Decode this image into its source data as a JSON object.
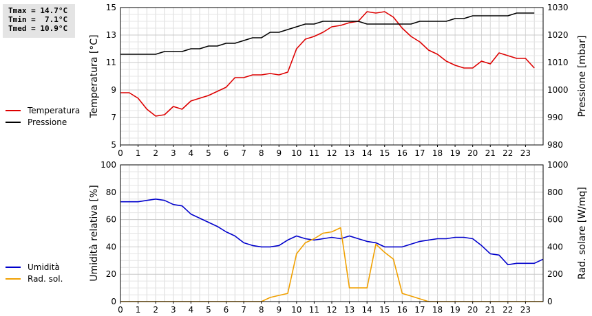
{
  "summary": {
    "tmax": "Tmax = 14.7°C",
    "tmin": "Tmin =  7.1°C",
    "tmed": "Tmed = 10.9°C"
  },
  "chart_data": [
    {
      "type": "line",
      "title": "",
      "xlabel": "",
      "x_ticks": [
        0,
        1,
        2,
        3,
        4,
        5,
        6,
        7,
        8,
        9,
        10,
        11,
        12,
        13,
        14,
        15,
        16,
        17,
        18,
        19,
        20,
        21,
        22,
        23
      ],
      "xlim": [
        0,
        24
      ],
      "ylabel": "Temperatura [°C]",
      "ylim": [
        5,
        15
      ],
      "yticks": [
        5,
        7,
        9,
        11,
        13,
        15
      ],
      "y2label": "Pressione [mbar]",
      "y2lim": [
        980,
        1030
      ],
      "y2ticks": [
        980,
        990,
        1000,
        1010,
        1020,
        1030
      ],
      "grid": true,
      "legend_position": "left",
      "series": [
        {
          "name": "Temperatura",
          "color": "#dd0000",
          "axis": "left",
          "points": [
            [
              0,
              8.8
            ],
            [
              0.5,
              8.8
            ],
            [
              1,
              8.4
            ],
            [
              1.5,
              7.6
            ],
            [
              2,
              7.1
            ],
            [
              2.5,
              7.2
            ],
            [
              3,
              7.8
            ],
            [
              3.5,
              7.6
            ],
            [
              4,
              8.2
            ],
            [
              4.5,
              8.4
            ],
            [
              5,
              8.6
            ],
            [
              5.5,
              8.9
            ],
            [
              6,
              9.2
            ],
            [
              6.5,
              9.9
            ],
            [
              7,
              9.9
            ],
            [
              7.5,
              10.1
            ],
            [
              8,
              10.1
            ],
            [
              8.5,
              10.2
            ],
            [
              9,
              10.1
            ],
            [
              9.5,
              10.3
            ],
            [
              10,
              12.0
            ],
            [
              10.5,
              12.7
            ],
            [
              11,
              12.9
            ],
            [
              11.5,
              13.2
            ],
            [
              12,
              13.6
            ],
            [
              12.5,
              13.7
            ],
            [
              13,
              13.9
            ],
            [
              13.5,
              14.0
            ],
            [
              14,
              14.7
            ],
            [
              14.5,
              14.6
            ],
            [
              15,
              14.7
            ],
            [
              15.5,
              14.3
            ],
            [
              16,
              13.5
            ],
            [
              16.5,
              12.9
            ],
            [
              17,
              12.5
            ],
            [
              17.5,
              11.9
            ],
            [
              18,
              11.6
            ],
            [
              18.5,
              11.1
            ],
            [
              19,
              10.8
            ],
            [
              19.5,
              10.6
            ],
            [
              20,
              10.6
            ],
            [
              20.5,
              11.1
            ],
            [
              21,
              10.9
            ],
            [
              21.5,
              11.7
            ],
            [
              22,
              11.5
            ],
            [
              22.5,
              11.3
            ],
            [
              23,
              11.3
            ],
            [
              23.5,
              10.6
            ]
          ]
        },
        {
          "name": "Pressione",
          "color": "#000000",
          "axis": "right",
          "points": [
            [
              0,
              1013
            ],
            [
              2,
              1013
            ],
            [
              2.5,
              1014
            ],
            [
              3.5,
              1014
            ],
            [
              4,
              1015
            ],
            [
              4.5,
              1015
            ],
            [
              5,
              1016
            ],
            [
              5.5,
              1016
            ],
            [
              6,
              1017
            ],
            [
              6.5,
              1017
            ],
            [
              7,
              1018
            ],
            [
              7.5,
              1019
            ],
            [
              8,
              1019
            ],
            [
              8.5,
              1021
            ],
            [
              9,
              1021
            ],
            [
              9.5,
              1022
            ],
            [
              10,
              1023
            ],
            [
              10.5,
              1024
            ],
            [
              11,
              1024
            ],
            [
              11.5,
              1025
            ],
            [
              12,
              1025
            ],
            [
              13.5,
              1025
            ],
            [
              14,
              1024
            ],
            [
              16.5,
              1024
            ],
            [
              17,
              1025
            ],
            [
              18.5,
              1025
            ],
            [
              19,
              1026
            ],
            [
              19.5,
              1026
            ],
            [
              20,
              1027
            ],
            [
              22,
              1027
            ],
            [
              22.5,
              1028
            ],
            [
              23.5,
              1028
            ]
          ]
        }
      ]
    },
    {
      "type": "line",
      "title": "",
      "xlabel": "",
      "x_ticks": [
        0,
        1,
        2,
        3,
        4,
        5,
        6,
        7,
        8,
        9,
        10,
        11,
        12,
        13,
        14,
        15,
        16,
        17,
        18,
        19,
        20,
        21,
        22,
        23
      ],
      "xlim": [
        0,
        24
      ],
      "ylabel": "Umidità relativa [%]",
      "ylim": [
        0,
        100
      ],
      "yticks": [
        0,
        20,
        40,
        60,
        80,
        100
      ],
      "y2label": "Rad. solare [W/mq]",
      "y2lim": [
        0,
        1000
      ],
      "y2ticks": [
        0,
        200,
        400,
        600,
        800,
        1000
      ],
      "grid": true,
      "legend_position": "left",
      "series": [
        {
          "name": "Umidità",
          "color": "#0000cc",
          "axis": "left",
          "points": [
            [
              0,
              73
            ],
            [
              1,
              73
            ],
            [
              1.5,
              74
            ],
            [
              2,
              75
            ],
            [
              2.5,
              74
            ],
            [
              3,
              71
            ],
            [
              3.5,
              70
            ],
            [
              4,
              64
            ],
            [
              4.5,
              61
            ],
            [
              5,
              58
            ],
            [
              5.5,
              55
            ],
            [
              6,
              51
            ],
            [
              6.5,
              48
            ],
            [
              7,
              43
            ],
            [
              7.5,
              41
            ],
            [
              8,
              40
            ],
            [
              8.5,
              40
            ],
            [
              9,
              41
            ],
            [
              9.5,
              45
            ],
            [
              10,
              48
            ],
            [
              10.5,
              46
            ],
            [
              11,
              45
            ],
            [
              11.5,
              46
            ],
            [
              12,
              47
            ],
            [
              12.5,
              46
            ],
            [
              13,
              48
            ],
            [
              13.5,
              46
            ],
            [
              14,
              44
            ],
            [
              14.5,
              43
            ],
            [
              15,
              40
            ],
            [
              16,
              40
            ],
            [
              16.5,
              42
            ],
            [
              17,
              44
            ],
            [
              17.5,
              45
            ],
            [
              18,
              46
            ],
            [
              18.5,
              46
            ],
            [
              19,
              47
            ],
            [
              19.5,
              47
            ],
            [
              20,
              46
            ],
            [
              20.5,
              41
            ],
            [
              21,
              35
            ],
            [
              21.5,
              34
            ],
            [
              22,
              27
            ],
            [
              22.5,
              28
            ],
            [
              23,
              28
            ],
            [
              23.5,
              28
            ],
            [
              24,
              31
            ]
          ]
        },
        {
          "name": "Rad. sol.",
          "color": "#f0a000",
          "axis": "right",
          "points": [
            [
              0,
              0
            ],
            [
              8,
              0
            ],
            [
              8.5,
              30
            ],
            [
              9,
              45
            ],
            [
              9.5,
              60
            ],
            [
              10,
              350
            ],
            [
              10.5,
              430
            ],
            [
              11,
              460
            ],
            [
              11.5,
              500
            ],
            [
              12,
              510
            ],
            [
              12.5,
              540
            ],
            [
              13,
              100
            ],
            [
              14,
              100
            ],
            [
              14.5,
              420
            ],
            [
              15,
              360
            ],
            [
              15.5,
              310
            ],
            [
              16,
              60
            ],
            [
              16.5,
              40
            ],
            [
              17,
              20
            ],
            [
              17.5,
              0
            ],
            [
              24,
              0
            ]
          ]
        }
      ]
    }
  ]
}
